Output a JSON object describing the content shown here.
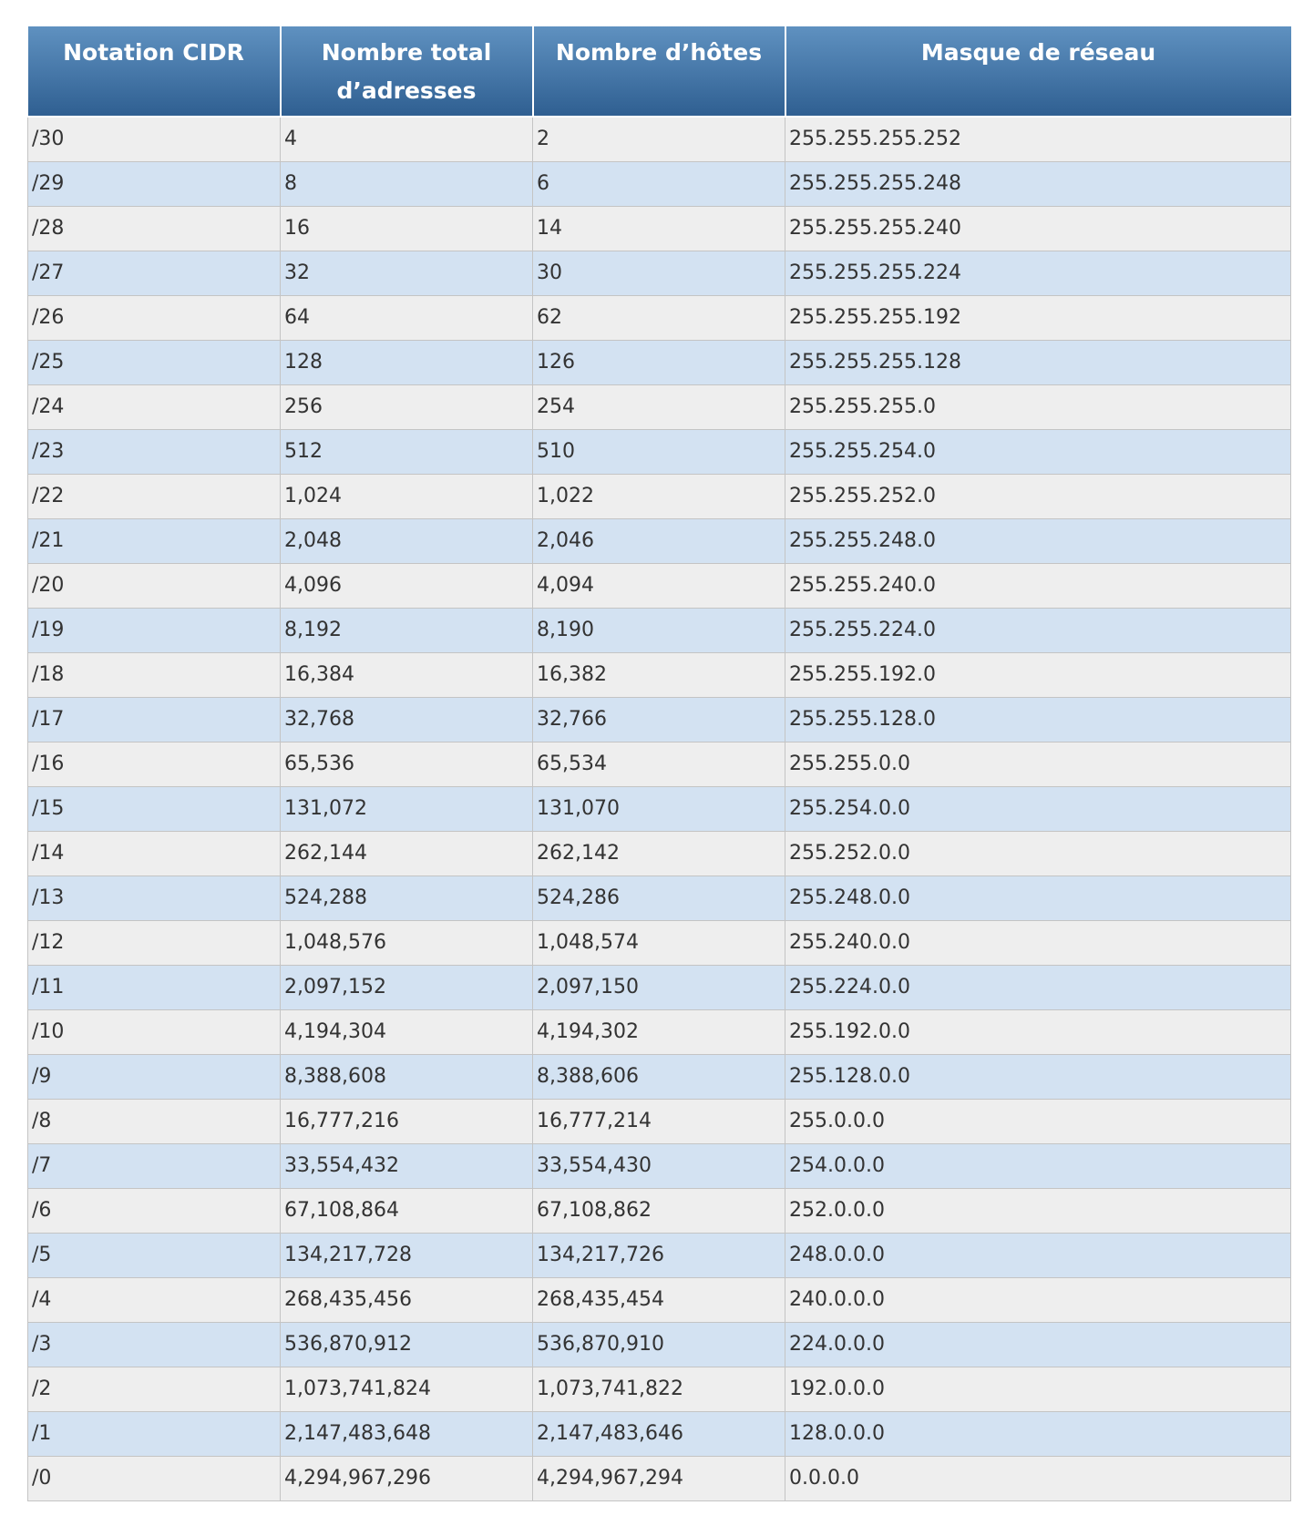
{
  "table": {
    "headers": [
      "Notation CIDR",
      "Nombre total d’adresses",
      "Nombre d’hôtes",
      "Masque de réseau"
    ],
    "rows": [
      [
        "/30",
        "4",
        "2",
        "255.255.255.252"
      ],
      [
        "/29",
        "8",
        "6",
        "255.255.255.248"
      ],
      [
        "/28",
        "16",
        "14",
        "255.255.255.240"
      ],
      [
        "/27",
        "32",
        "30",
        "255.255.255.224"
      ],
      [
        "/26",
        "64",
        "62",
        "255.255.255.192"
      ],
      [
        "/25",
        "128",
        "126",
        "255.255.255.128"
      ],
      [
        "/24",
        "256",
        "254",
        "255.255.255.0"
      ],
      [
        "/23",
        "512",
        "510",
        "255.255.254.0"
      ],
      [
        "/22",
        "1,024",
        "1,022",
        "255.255.252.0"
      ],
      [
        "/21",
        "2,048",
        "2,046",
        "255.255.248.0"
      ],
      [
        "/20",
        "4,096",
        "4,094",
        "255.255.240.0"
      ],
      [
        "/19",
        "8,192",
        "8,190",
        "255.255.224.0"
      ],
      [
        "/18",
        "16,384",
        "16,382",
        "255.255.192.0"
      ],
      [
        "/17",
        "32,768",
        "32,766",
        "255.255.128.0"
      ],
      [
        "/16",
        "65,536",
        "65,534",
        "255.255.0.0"
      ],
      [
        "/15",
        "131,072",
        "131,070",
        "255.254.0.0"
      ],
      [
        "/14",
        "262,144",
        "262,142",
        "255.252.0.0"
      ],
      [
        "/13",
        "524,288",
        "524,286",
        "255.248.0.0"
      ],
      [
        "/12",
        "1,048,576",
        "1,048,574",
        "255.240.0.0"
      ],
      [
        "/11",
        "2,097,152",
        "2,097,150",
        "255.224.0.0"
      ],
      [
        "/10",
        "4,194,304",
        "4,194,302",
        "255.192.0.0"
      ],
      [
        "/9",
        "8,388,608",
        "8,388,606",
        "255.128.0.0"
      ],
      [
        "/8",
        "16,777,216",
        "16,777,214",
        "255.0.0.0"
      ],
      [
        "/7",
        "33,554,432",
        "33,554,430",
        "254.0.0.0"
      ],
      [
        "/6",
        "67,108,864",
        "67,108,862",
        "252.0.0.0"
      ],
      [
        "/5",
        "134,217,728",
        "134,217,726",
        "248.0.0.0"
      ],
      [
        "/4",
        "268,435,456",
        "268,435,454",
        "240.0.0.0"
      ],
      [
        "/3",
        "536,870,912",
        "536,870,910",
        "224.0.0.0"
      ],
      [
        "/2",
        "1,073,741,824",
        "1,073,741,822",
        "192.0.0.0"
      ],
      [
        "/1",
        "2,147,483,648",
        "2,147,483,646",
        "128.0.0.0"
      ],
      [
        "/0",
        "4,294,967,296",
        "4,294,967,294",
        "0.0.0.0"
      ]
    ]
  },
  "colors": {
    "header_top": "#5f91c0",
    "header_bottom": "#2f5f91",
    "row_odd": "#eeeeee",
    "row_even": "#d3e2f2",
    "text": "#333333"
  }
}
